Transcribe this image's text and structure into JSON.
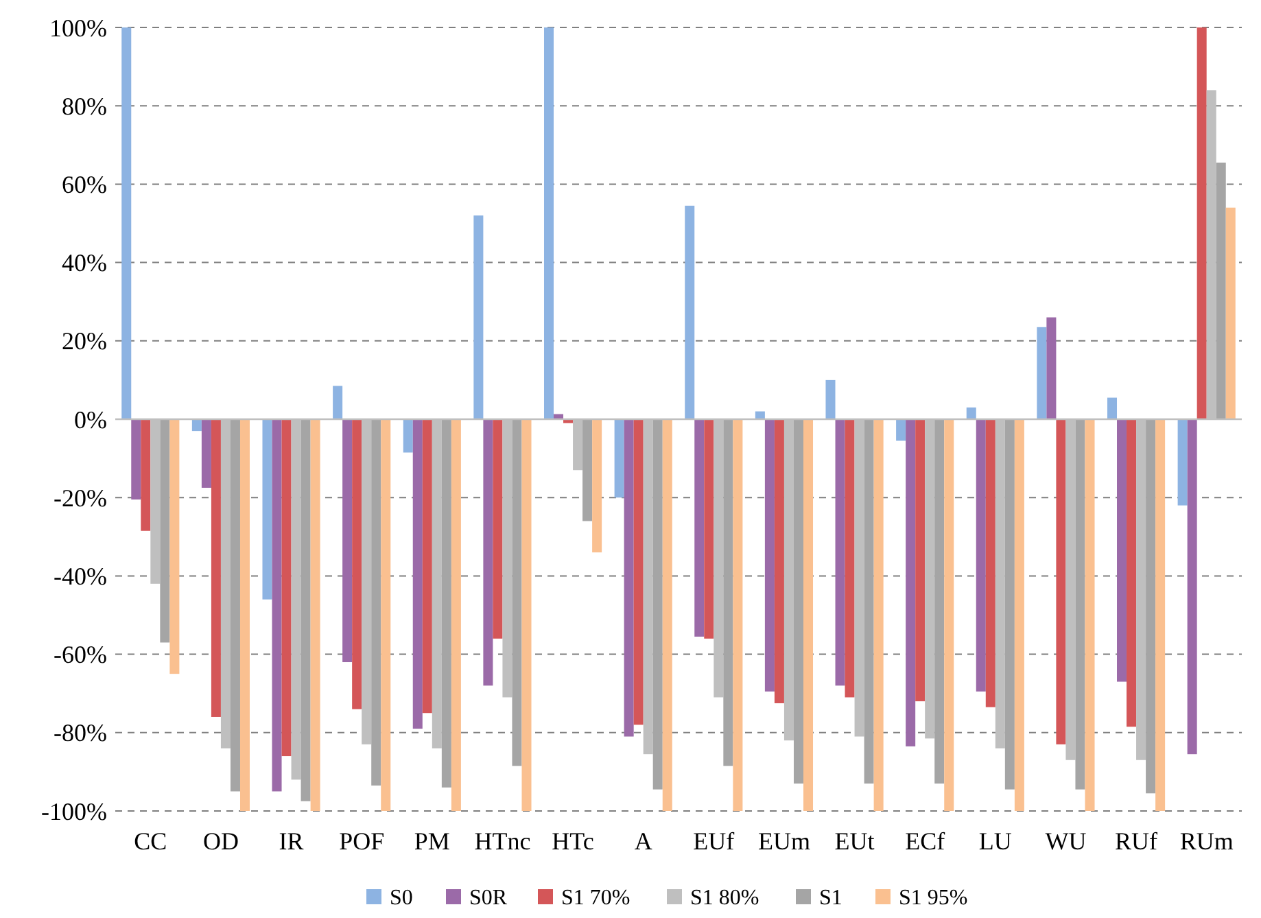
{
  "chart_data": {
    "type": "bar",
    "categories": [
      "CC",
      "OD",
      "IR",
      "POF",
      "PM",
      "HTnc",
      "HTc",
      "A",
      "EUf",
      "EUm",
      "EUt",
      "ECf",
      "LU",
      "WU",
      "RUf",
      "RUm"
    ],
    "series": [
      {
        "name": "S0",
        "color": "#8db3e2",
        "values": [
          100,
          -3,
          -46,
          8.5,
          -8.5,
          52,
          100,
          -20,
          54.5,
          2,
          10,
          -5.5,
          3,
          23.5,
          5.5,
          -22
        ]
      },
      {
        "name": "S0R",
        "color": "#9b6aa8",
        "values": [
          -20.5,
          -17.5,
          -95,
          -62,
          -79,
          -68,
          1.3,
          -81,
          -55.5,
          -69.5,
          -68,
          -83.5,
          -69.5,
          26,
          -67,
          -85.5
        ]
      },
      {
        "name": "S1 70%",
        "color": "#d45658",
        "values": [
          -28.5,
          -76,
          -86,
          -74,
          -75,
          -56,
          -1,
          -78,
          -56,
          -72.5,
          -71,
          -72,
          -73.5,
          -83,
          -78.5,
          100
        ]
      },
      {
        "name": "S1 80%",
        "color": "#bfbfbf",
        "values": [
          -42,
          -84,
          -92,
          -83,
          -84,
          -71,
          -13,
          -85.5,
          -71,
          -82,
          -81,
          -81.5,
          -84,
          -87,
          -87,
          84
        ]
      },
      {
        "name": "S1",
        "color": "#a5a5a5",
        "values": [
          -57,
          -95,
          -97.5,
          -93.5,
          -94,
          -88.5,
          -26,
          -94.5,
          -88.5,
          -93,
          -93,
          -93,
          -94.5,
          -94.5,
          -95.5,
          65.5
        ]
      },
      {
        "name": "S1 95%",
        "color": "#fac090",
        "values": [
          -65,
          -100,
          -100,
          -100,
          -100,
          -100,
          -34,
          -100,
          -100,
          -100,
          -100,
          -100,
          -100,
          -100,
          -100,
          54
        ]
      }
    ],
    "ylim": [
      -100,
      100
    ],
    "yticks": [
      {
        "value": -100,
        "label": "-100%"
      },
      {
        "value": -80,
        "label": "-80%"
      },
      {
        "value": -60,
        "label": "-60%"
      },
      {
        "value": -40,
        "label": "-40%"
      },
      {
        "value": -20,
        "label": "-20%"
      },
      {
        "value": 0,
        "label": "0%"
      },
      {
        "value": 20,
        "label": "20%"
      },
      {
        "value": 40,
        "label": "40%"
      },
      {
        "value": 60,
        "label": "60%"
      },
      {
        "value": 80,
        "label": "80%"
      },
      {
        "value": 100,
        "label": "100%"
      }
    ],
    "grid": "y",
    "legend": "bottom"
  }
}
